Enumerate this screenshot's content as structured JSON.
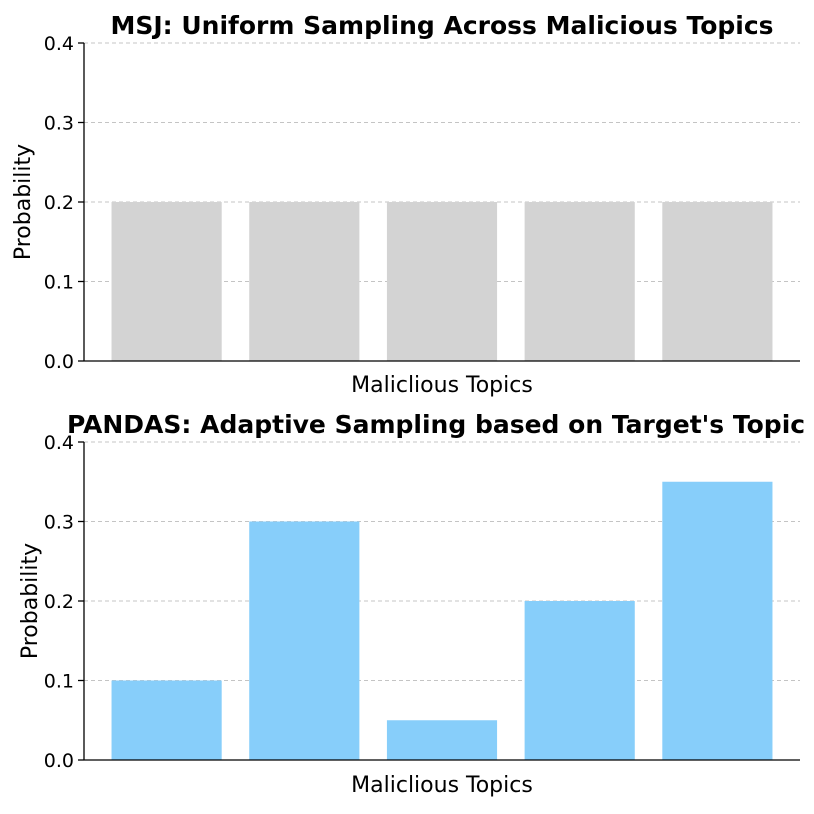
{
  "chart_data": [
    {
      "type": "bar",
      "title": "MSJ: Uniform Sampling Across Malicious Topics",
      "xlabel": "Maliclious Topics",
      "ylabel": "Probability",
      "categories": [
        "",
        "",
        "",
        "",
        ""
      ],
      "values": [
        0.2,
        0.2,
        0.2,
        0.2,
        0.2
      ],
      "ylim": [
        0,
        0.4
      ],
      "yticks": [
        "0.0",
        "0.1",
        "0.2",
        "0.3",
        "0.4"
      ],
      "bar_color": "#d3d3d3",
      "grid": "y-dashed"
    },
    {
      "type": "bar",
      "title": "PANDAS: Adaptive Sampling based on Target's Topic",
      "xlabel": "Maliclious Topics",
      "ylabel": "Probability",
      "categories": [
        "",
        "",
        "",
        "",
        ""
      ],
      "values": [
        0.1,
        0.3,
        0.05,
        0.2,
        0.35
      ],
      "ylim": [
        0,
        0.4
      ],
      "yticks": [
        "0.0",
        "0.1",
        "0.2",
        "0.3",
        "0.4"
      ],
      "bar_color": "#87cefa",
      "grid": "y-dashed"
    }
  ]
}
